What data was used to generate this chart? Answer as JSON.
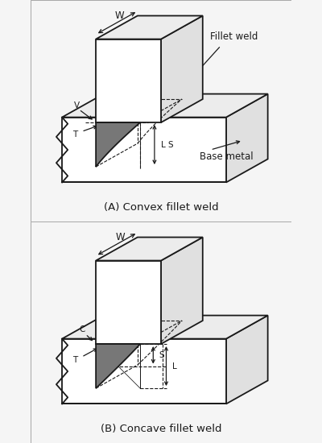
{
  "bg_color": "#f5f5f5",
  "panel_bg": "#ffffff",
  "line_color": "#1a1a1a",
  "fill_gray": "#777777",
  "title_A": "(A) Convex fillet weld",
  "title_B": "(B) Concave fillet weld",
  "label_fillet": "Fillet weld",
  "label_base": "Base metal",
  "font_size_title": 9.5,
  "font_size_label": 8.5,
  "font_size_dim": 7.5,
  "lw_main": 1.3,
  "lw_dash": 0.8,
  "lw_arrow": 0.8
}
